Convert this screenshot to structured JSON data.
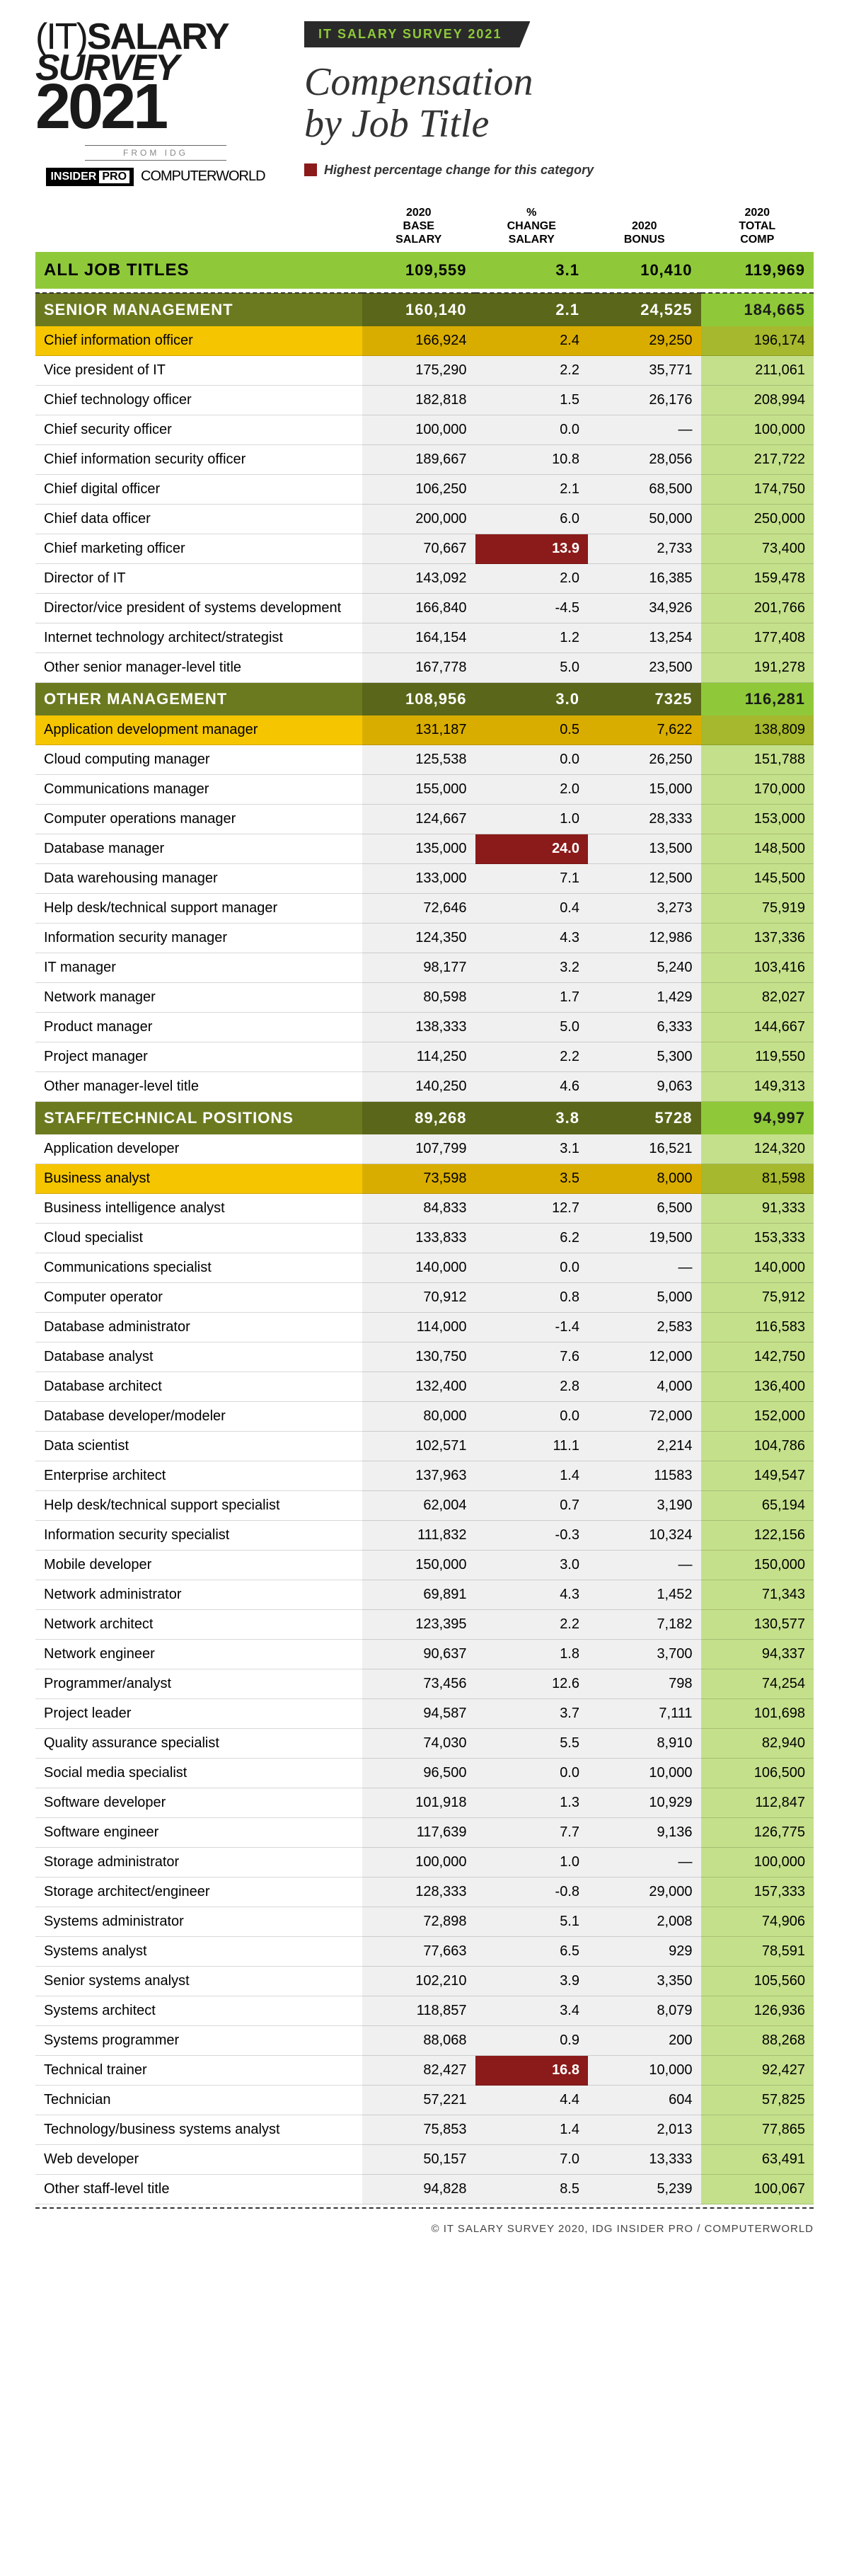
{
  "logo": {
    "line1_it": "(IT)",
    "line1_rest": "SALARY",
    "line2": "SURVEY",
    "line3": "2021",
    "from": "FROM IDG",
    "brand1a": "INSIDER",
    "brand1b": "PRO",
    "brand2": "COMPUTERWORLD"
  },
  "header": {
    "tag_label": "IT SALARY SURVEY",
    "tag_year": "2021",
    "title_l1": "Compensation",
    "title_l2": "by Job Title",
    "legend": "Highest percentage change for this category"
  },
  "columns": [
    "",
    "2020 BASE SALARY",
    "% CHANGE SALARY",
    "2020 BONUS",
    "2020 TOTAL COMP"
  ],
  "all_jobs": {
    "label": "ALL JOB TITLES",
    "c1": "109,559",
    "c2": "3.1",
    "c3": "10,410",
    "c4": "119,969"
  },
  "sections": [
    {
      "header": {
        "label": "SENIOR MANAGEMENT",
        "c1": "160,140",
        "c2": "2.1",
        "c3": "24,525",
        "c4": "184,665"
      },
      "rows": [
        {
          "label": "Chief information officer",
          "c1": "166,924",
          "c2": "2.4",
          "c3": "29,250",
          "c4": "196,174",
          "hl": true
        },
        {
          "label": "Vice president of IT",
          "c1": "175,290",
          "c2": "2.2",
          "c3": "35,771",
          "c4": "211,061"
        },
        {
          "label": "Chief technology officer",
          "c1": "182,818",
          "c2": "1.5",
          "c3": "26,176",
          "c4": "208,994"
        },
        {
          "label": "Chief security officer",
          "c1": "100,000",
          "c2": "0.0",
          "c3": "—",
          "c4": "100,000"
        },
        {
          "label": "Chief information security officer",
          "c1": "189,667",
          "c2": "10.8",
          "c3": "28,056",
          "c4": "217,722"
        },
        {
          "label": "Chief digital officer",
          "c1": "106,250",
          "c2": "2.1",
          "c3": "68,500",
          "c4": "174,750"
        },
        {
          "label": "Chief data officer",
          "c1": "200,000",
          "c2": "6.0",
          "c3": "50,000",
          "c4": "250,000"
        },
        {
          "label": "Chief marketing officer",
          "c1": "70,667",
          "c2": "13.9",
          "c3": "2,733",
          "c4": "73,400",
          "red_c2": true
        },
        {
          "label": "Director of IT",
          "c1": "143,092",
          "c2": "2.0",
          "c3": "16,385",
          "c4": "159,478"
        },
        {
          "label": "Director/vice president of systems development",
          "c1": "166,840",
          "c2": "-4.5",
          "c3": "34,926",
          "c4": "201,766"
        },
        {
          "label": "Internet technology architect/strategist",
          "c1": "164,154",
          "c2": "1.2",
          "c3": "13,254",
          "c4": "177,408"
        },
        {
          "label": "Other senior manager-level title",
          "c1": "167,778",
          "c2": "5.0",
          "c3": "23,500",
          "c4": "191,278"
        }
      ]
    },
    {
      "header": {
        "label": "OTHER MANAGEMENT",
        "c1": "108,956",
        "c2": "3.0",
        "c3": "7325",
        "c4": "116,281"
      },
      "rows": [
        {
          "label": "Application development manager",
          "c1": "131,187",
          "c2": "0.5",
          "c3": "7,622",
          "c4": "138,809",
          "hl": true
        },
        {
          "label": "Cloud computing manager",
          "c1": "125,538",
          "c2": "0.0",
          "c3": "26,250",
          "c4": "151,788"
        },
        {
          "label": "Communications manager",
          "c1": "155,000",
          "c2": "2.0",
          "c3": "15,000",
          "c4": "170,000"
        },
        {
          "label": "Computer operations manager",
          "c1": "124,667",
          "c2": "1.0",
          "c3": "28,333",
          "c4": "153,000"
        },
        {
          "label": "Database manager",
          "c1": "135,000",
          "c2": "24.0",
          "c3": "13,500",
          "c4": "148,500",
          "red_c2": true
        },
        {
          "label": "Data warehousing manager",
          "c1": "133,000",
          "c2": "7.1",
          "c3": "12,500",
          "c4": "145,500"
        },
        {
          "label": "Help desk/technical support manager",
          "c1": "72,646",
          "c2": "0.4",
          "c3": "3,273",
          "c4": "75,919"
        },
        {
          "label": "Information security manager",
          "c1": "124,350",
          "c2": "4.3",
          "c3": "12,986",
          "c4": "137,336"
        },
        {
          "label": "IT manager",
          "c1": "98,177",
          "c2": "3.2",
          "c3": "5,240",
          "c4": "103,416"
        },
        {
          "label": "Network manager",
          "c1": "80,598",
          "c2": "1.7",
          "c3": "1,429",
          "c4": "82,027"
        },
        {
          "label": "Product manager",
          "c1": "138,333",
          "c2": "5.0",
          "c3": "6,333",
          "c4": "144,667"
        },
        {
          "label": "Project manager",
          "c1": "114,250",
          "c2": "2.2",
          "c3": "5,300",
          "c4": "119,550"
        },
        {
          "label": "Other manager-level title",
          "c1": "140,250",
          "c2": "4.6",
          "c3": "9,063",
          "c4": "149,313"
        }
      ]
    },
    {
      "header": {
        "label": "STAFF/TECHNICAL POSITIONS",
        "c1": "89,268",
        "c2": "3.8",
        "c3": "5728",
        "c4": "94,997"
      },
      "rows": [
        {
          "label": "Application developer",
          "c1": "107,799",
          "c2": "3.1",
          "c3": "16,521",
          "c4": "124,320"
        },
        {
          "label": "Business analyst",
          "c1": "73,598",
          "c2": "3.5",
          "c3": "8,000",
          "c4": "81,598",
          "hl": true
        },
        {
          "label": "Business intelligence analyst",
          "c1": "84,833",
          "c2": "12.7",
          "c3": "6,500",
          "c4": "91,333"
        },
        {
          "label": "Cloud specialist",
          "c1": "133,833",
          "c2": "6.2",
          "c3": "19,500",
          "c4": "153,333"
        },
        {
          "label": "Communications specialist",
          "c1": "140,000",
          "c2": "0.0",
          "c3": "—",
          "c4": "140,000"
        },
        {
          "label": "Computer operator",
          "c1": "70,912",
          "c2": "0.8",
          "c3": "5,000",
          "c4": "75,912"
        },
        {
          "label": "Database administrator",
          "c1": "114,000",
          "c2": "-1.4",
          "c3": "2,583",
          "c4": "116,583"
        },
        {
          "label": "Database analyst",
          "c1": "130,750",
          "c2": "7.6",
          "c3": "12,000",
          "c4": "142,750"
        },
        {
          "label": "Database architect",
          "c1": "132,400",
          "c2": "2.8",
          "c3": "4,000",
          "c4": "136,400"
        },
        {
          "label": "Database developer/modeler",
          "c1": "80,000",
          "c2": "0.0",
          "c3": "72,000",
          "c4": "152,000"
        },
        {
          "label": "Data scientist",
          "c1": "102,571",
          "c2": "11.1",
          "c3": "2,214",
          "c4": "104,786"
        },
        {
          "label": "Enterprise architect",
          "c1": "137,963",
          "c2": "1.4",
          "c3": "11583",
          "c4": "149,547"
        },
        {
          "label": "Help desk/technical support specialist",
          "c1": "62,004",
          "c2": "0.7",
          "c3": "3,190",
          "c4": "65,194"
        },
        {
          "label": "Information security specialist",
          "c1": "111,832",
          "c2": "-0.3",
          "c3": "10,324",
          "c4": "122,156"
        },
        {
          "label": "Mobile developer",
          "c1": "150,000",
          "c2": "3.0",
          "c3": "—",
          "c4": "150,000"
        },
        {
          "label": "Network administrator",
          "c1": "69,891",
          "c2": "4.3",
          "c3": "1,452",
          "c4": "71,343"
        },
        {
          "label": "Network architect",
          "c1": "123,395",
          "c2": "2.2",
          "c3": "7,182",
          "c4": "130,577"
        },
        {
          "label": "Network engineer",
          "c1": "90,637",
          "c2": "1.8",
          "c3": "3,700",
          "c4": "94,337"
        },
        {
          "label": "Programmer/analyst",
          "c1": "73,456",
          "c2": "12.6",
          "c3": "798",
          "c4": "74,254"
        },
        {
          "label": "Project leader",
          "c1": "94,587",
          "c2": "3.7",
          "c3": "7,111",
          "c4": "101,698"
        },
        {
          "label": "Quality assurance specialist",
          "c1": "74,030",
          "c2": "5.5",
          "c3": "8,910",
          "c4": "82,940"
        },
        {
          "label": "Social media specialist",
          "c1": "96,500",
          "c2": "0.0",
          "c3": "10,000",
          "c4": "106,500"
        },
        {
          "label": "Software developer",
          "c1": "101,918",
          "c2": "1.3",
          "c3": "10,929",
          "c4": "112,847"
        },
        {
          "label": "Software engineer",
          "c1": "117,639",
          "c2": "7.7",
          "c3": "9,136",
          "c4": "126,775"
        },
        {
          "label": "Storage administrator",
          "c1": "100,000",
          "c2": "1.0",
          "c3": "—",
          "c4": "100,000"
        },
        {
          "label": "Storage architect/engineer",
          "c1": "128,333",
          "c2": "-0.8",
          "c3": "29,000",
          "c4": "157,333"
        },
        {
          "label": "Systems administrator",
          "c1": "72,898",
          "c2": "5.1",
          "c3": "2,008",
          "c4": "74,906"
        },
        {
          "label": "Systems analyst",
          "c1": "77,663",
          "c2": "6.5",
          "c3": "929",
          "c4": "78,591"
        },
        {
          "label": "Senior systems analyst",
          "c1": "102,210",
          "c2": "3.9",
          "c3": "3,350",
          "c4": "105,560"
        },
        {
          "label": "Systems architect",
          "c1": "118,857",
          "c2": "3.4",
          "c3": "8,079",
          "c4": "126,936"
        },
        {
          "label": "Systems programmer",
          "c1": "88,068",
          "c2": "0.9",
          "c3": "200",
          "c4": "88,268"
        },
        {
          "label": "Technical trainer",
          "c1": "82,427",
          "c2": "16.8",
          "c3": "10,000",
          "c4": "92,427",
          "red_c2": true
        },
        {
          "label": "Technician",
          "c1": "57,221",
          "c2": "4.4",
          "c3": "604",
          "c4": "57,825"
        },
        {
          "label": "Technology/business systems analyst",
          "c1": "75,853",
          "c2": "1.4",
          "c3": "2,013",
          "c4": "77,865"
        },
        {
          "label": "Web developer",
          "c1": "50,157",
          "c2": "7.0",
          "c3": "13,333",
          "c4": "63,491"
        },
        {
          "label": "Other staff-level title",
          "c1": "94,828",
          "c2": "8.5",
          "c3": "5,239",
          "c4": "100,067"
        }
      ]
    }
  ],
  "footer": "© IT SALARY SURVEY 2020, IDG INSIDER PRO / COMPUTERWORLD"
}
